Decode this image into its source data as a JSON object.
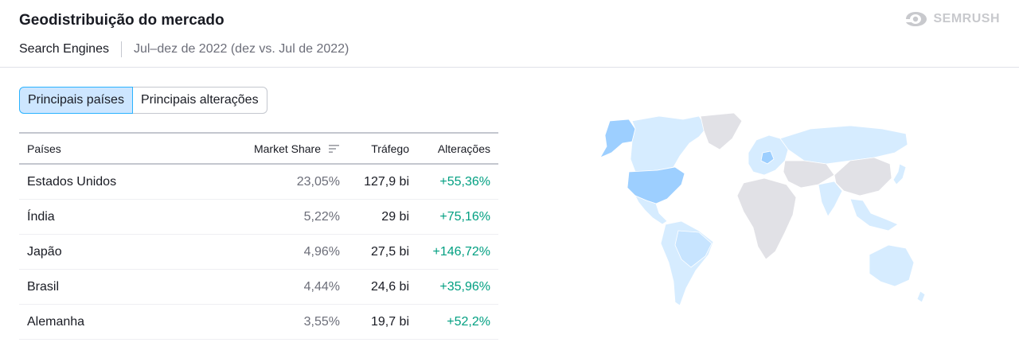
{
  "header": {
    "title": "Geodistribuição do mercado",
    "database": "Search Engines",
    "period": "Jul–dez de 2022 (dez vs. Jul de 2022)",
    "brand": "SEMRUSH"
  },
  "tabs": [
    {
      "label": "Principais países",
      "active": true
    },
    {
      "label": "Principais alterações",
      "active": false
    }
  ],
  "table": {
    "columns": {
      "country": "Países",
      "market_share": "Market Share",
      "traffic": "Tráfego",
      "change": "Alterações"
    },
    "rows": [
      {
        "country": "Estados Unidos",
        "market_share": "23,05%",
        "traffic": "127,9 bi",
        "change": "+55,36%"
      },
      {
        "country": "Índia",
        "market_share": "5,22%",
        "traffic": "29 bi",
        "change": "+75,16%"
      },
      {
        "country": "Japão",
        "market_share": "4,96%",
        "traffic": "27,5 bi",
        "change": "+146,72%"
      },
      {
        "country": "Brasil",
        "market_share": "4,44%",
        "traffic": "24,6 bi",
        "change": "+35,96%"
      },
      {
        "country": "Alemanha",
        "market_share": "3,55%",
        "traffic": "19,7 bi",
        "change": "+52,2%"
      }
    ]
  },
  "map": {
    "highlight_color": "#9dcfff",
    "light_color": "#d6ecff",
    "neutral_color": "#e1e1e6"
  },
  "colors": {
    "positive": "#009f81",
    "active_tab_bg": "#cde6ff",
    "active_tab_border": "#2bb3ff"
  }
}
